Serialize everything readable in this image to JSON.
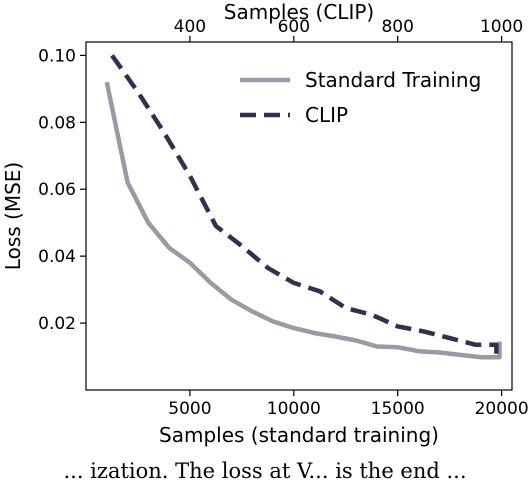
{
  "caption_fragment": "... ization. The loss at V... is the end ...",
  "chart_data": {
    "type": "line",
    "xlabel": "Samples (standard training)",
    "x2label": "Samples (CLIP)",
    "ylabel": "Loss (MSE)",
    "xlim": [
      0,
      20500
    ],
    "x2lim": [
      200,
      1020
    ],
    "ylim": [
      0.0,
      0.104
    ],
    "x_ticks": [
      5000,
      10000,
      15000,
      20000
    ],
    "x_tick_labels": [
      "5000",
      "10000",
      "15000",
      "20000"
    ],
    "x2_ticks": [
      400,
      600,
      800,
      1000
    ],
    "x2_tick_labels": [
      "400",
      "600",
      "800",
      "1000"
    ],
    "y_ticks": [
      0.02,
      0.04,
      0.06,
      0.08,
      0.1
    ],
    "y_tick_labels": [
      "0.02",
      "0.04",
      "0.06",
      "0.08",
      "0.10"
    ],
    "grid": false,
    "legend_position": "top-right",
    "series": [
      {
        "name": "Standard Training",
        "axis": "bottom",
        "color": "#9a9aa6",
        "dash": "solid",
        "x": [
          1000,
          2000,
          3000,
          4000,
          5000,
          6000,
          7000,
          8000,
          9000,
          10000,
          11000,
          12000,
          13000,
          14000,
          15000,
          16000,
          17000,
          18000,
          19000,
          19900,
          19900
        ],
        "y": [
          0.092,
          0.062,
          0.05,
          0.0425,
          0.038,
          0.032,
          0.027,
          0.0235,
          0.0205,
          0.0185,
          0.017,
          0.016,
          0.0148,
          0.013,
          0.0128,
          0.0116,
          0.0112,
          0.0105,
          0.0098,
          0.0098,
          0.0145
        ]
      },
      {
        "name": "CLIP",
        "axis": "top",
        "color": "#2f3150",
        "dash": "dashed",
        "x": [
          250,
          300,
          350,
          400,
          450,
          500,
          550,
          600,
          650,
          700,
          750,
          800,
          850,
          900,
          950,
          990,
          990
        ],
        "y": [
          0.1,
          0.089,
          0.077,
          0.064,
          0.049,
          0.043,
          0.0365,
          0.032,
          0.0295,
          0.0245,
          0.0225,
          0.019,
          0.0175,
          0.0155,
          0.0135,
          0.0135,
          0.0098
        ]
      }
    ]
  }
}
